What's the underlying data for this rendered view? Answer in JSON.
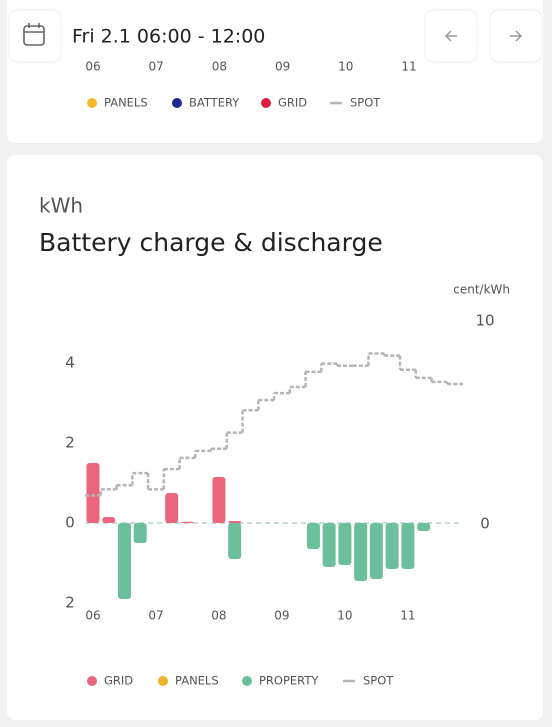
{
  "header": {
    "date_range": "Fri 2.1 06:00 - 12:00"
  },
  "top_card": {
    "x_labels": [
      "06",
      "07",
      "08",
      "09",
      "10",
      "11"
    ],
    "legend": [
      {
        "name": "PANELS",
        "color": "#f5b82e"
      },
      {
        "name": "BATTERY",
        "color": "#1a2a8f"
      },
      {
        "name": "GRID",
        "color": "#dc1e3c"
      },
      {
        "name": "SPOT",
        "color": "#b5b5b5"
      }
    ]
  },
  "chart_data": {
    "type": "bar",
    "unit": "kWh",
    "title": "Battery charge & discharge",
    "y2_label": "cent/kWh",
    "categories": [
      "06",
      null,
      null,
      null,
      "07",
      null,
      null,
      null,
      "08",
      null,
      null,
      null,
      "09",
      null,
      null,
      null,
      "10",
      null,
      null,
      null,
      "11",
      null,
      null,
      null
    ],
    "series": [
      {
        "name": "GRID",
        "color": "#e9667c",
        "values": [
          1.5,
          0.15,
          null,
          null,
          null,
          0.75,
          0.03,
          null,
          1.15,
          0.05,
          null,
          null,
          null,
          null,
          null,
          null,
          null,
          null,
          null,
          null,
          null,
          null,
          null,
          null
        ]
      },
      {
        "name": "PANELS",
        "color": "#f0b429",
        "values": [
          null,
          null,
          null,
          null,
          null,
          null,
          null,
          null,
          null,
          null,
          null,
          null,
          null,
          null,
          null,
          null,
          null,
          null,
          null,
          null,
          null,
          null,
          null,
          null
        ]
      },
      {
        "name": "PROPERTY",
        "color": "#6cbf9b",
        "values": [
          null,
          null,
          -1.9,
          -0.5,
          null,
          null,
          null,
          null,
          null,
          -0.9,
          null,
          null,
          null,
          null,
          -0.65,
          -1.1,
          -1.05,
          -1.45,
          -1.4,
          -1.15,
          -1.15,
          -0.2,
          null,
          null
        ]
      },
      {
        "name": "SPOT",
        "color": "#b5b5b5",
        "axis": "y2",
        "type": "step",
        "values": [
          1.4,
          1.7,
          1.9,
          2.5,
          1.7,
          2.7,
          3.25,
          3.6,
          3.7,
          4.5,
          5.6,
          6.1,
          6.45,
          6.75,
          7.5,
          7.9,
          7.8,
          7.8,
          8.4,
          8.3,
          7.6,
          7.2,
          7.0,
          6.9
        ]
      }
    ],
    "ylim": [
      -2.25,
      5.25
    ],
    "yticks": [
      {
        "value": 4,
        "label": "4"
      },
      {
        "value": 2,
        "label": "2"
      },
      {
        "value": 0,
        "label": "0"
      },
      {
        "value": -2,
        "label": "2"
      }
    ],
    "y2lim": [
      -4.4,
      10.4
    ],
    "y2ticks": [
      10,
      0
    ],
    "grid": false
  }
}
